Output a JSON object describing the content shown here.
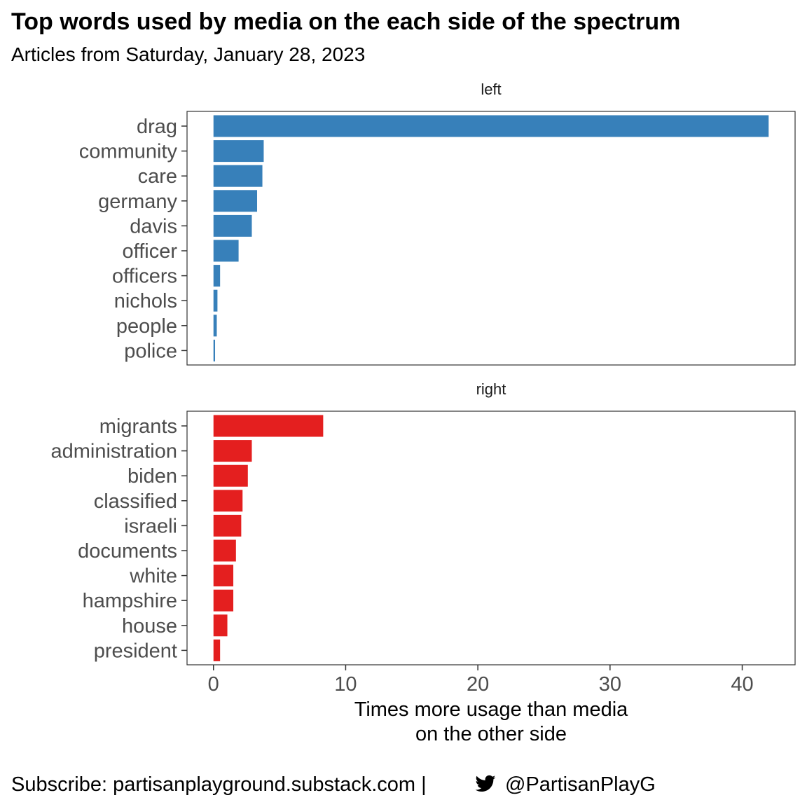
{
  "title": "Top words used by media on the each side of the spectrum",
  "subtitle": "Articles from Saturday, January 28, 2023",
  "caption": {
    "prefix": "Subscribe: partisanplayground.substack.com | ",
    "icon": "twitter-bird-icon",
    "handle": "@PartisanPlayG"
  },
  "chart_data": {
    "type": "bar",
    "orientation": "horizontal",
    "xlabel": [
      "Times more usage than media",
      "on the other side"
    ],
    "xlim": [
      -2,
      44
    ],
    "xticks": [
      0,
      10,
      20,
      30,
      40
    ],
    "grid": false,
    "panels": [
      {
        "label": "left",
        "color": "#3780BA",
        "categories": [
          "drag",
          "community",
          "care",
          "germany",
          "davis",
          "officer",
          "officers",
          "nichols",
          "people",
          "police"
        ],
        "values": [
          42.0,
          3.8,
          3.7,
          3.3,
          2.9,
          1.9,
          0.5,
          0.3,
          0.25,
          0.12
        ]
      },
      {
        "label": "right",
        "color": "#E41F1F",
        "categories": [
          "migrants",
          "administration",
          "biden",
          "classified",
          "israeli",
          "documents",
          "white",
          "hampshire",
          "house",
          "president"
        ],
        "values": [
          8.3,
          2.9,
          2.6,
          2.2,
          2.1,
          1.7,
          1.5,
          1.5,
          1.05,
          0.5
        ]
      }
    ]
  }
}
